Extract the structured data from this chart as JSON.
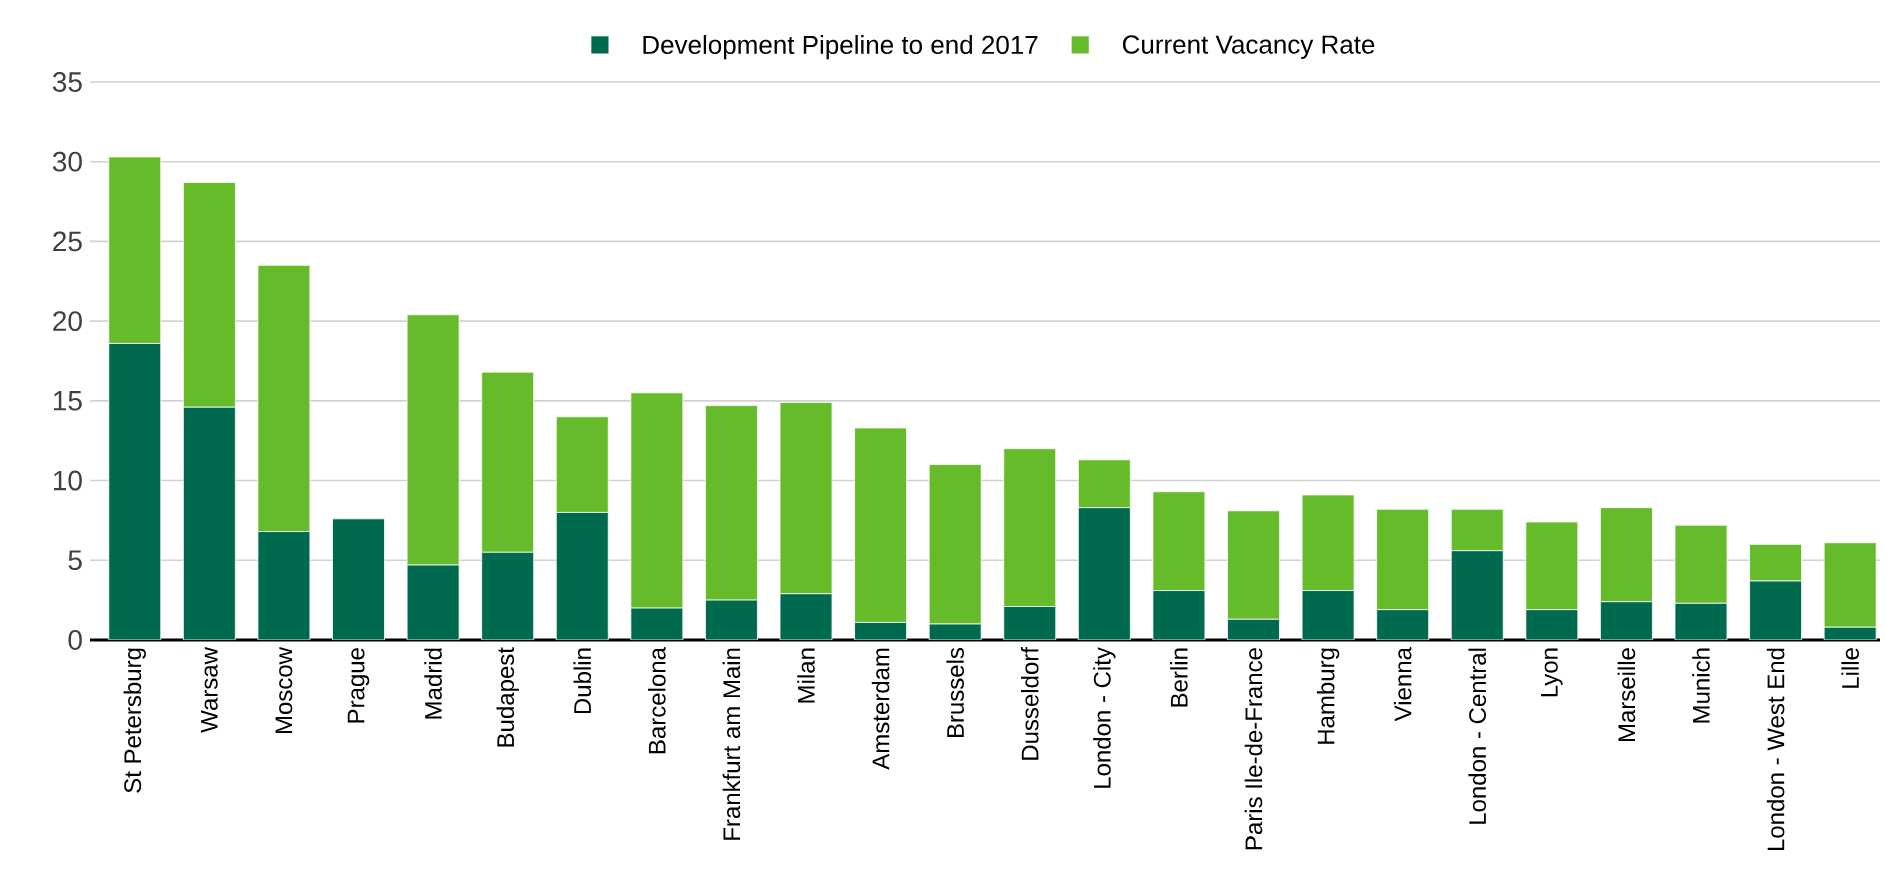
{
  "chart_data": {
    "type": "bar",
    "stacked": true,
    "categories": [
      "St Petersburg",
      "Warsaw",
      "Moscow",
      "Prague",
      "Madrid",
      "Budapest",
      "Dublin",
      "Barcelona",
      "Frankfurt am Main",
      "Milan",
      "Amsterdam",
      "Brussels",
      "Dusseldorf",
      "London - City",
      "Berlin",
      "Paris Ile-de-France",
      "Hamburg",
      "Vienna",
      "London - Central",
      "Lyon",
      "Marseille",
      "Munich",
      "London - West End",
      "Lille"
    ],
    "series": [
      {
        "name": "Development Pipeline to end 2017",
        "color": "#006a4e",
        "values": [
          18.6,
          14.6,
          6.8,
          7.6,
          4.7,
          5.5,
          8.0,
          2.0,
          2.5,
          2.9,
          1.1,
          1.0,
          2.1,
          8.3,
          3.1,
          1.3,
          3.1,
          1.9,
          5.6,
          1.9,
          2.4,
          2.3,
          3.7,
          0.8
        ]
      },
      {
        "name": "Current Vacancy Rate",
        "color": "#66bb2a",
        "values": [
          11.7,
          14.1,
          16.7,
          0,
          15.7,
          11.3,
          6.0,
          13.5,
          12.2,
          12.0,
          12.2,
          10.0,
          9.9,
          3.0,
          6.2,
          6.8,
          6.0,
          6.3,
          2.6,
          5.5,
          5.9,
          4.9,
          2.3,
          5.3
        ]
      }
    ],
    "ylim": [
      0,
      35
    ],
    "yticks": [
      0,
      5,
      10,
      15,
      20,
      25,
      30,
      35
    ],
    "grid": "y",
    "legend": "top"
  }
}
